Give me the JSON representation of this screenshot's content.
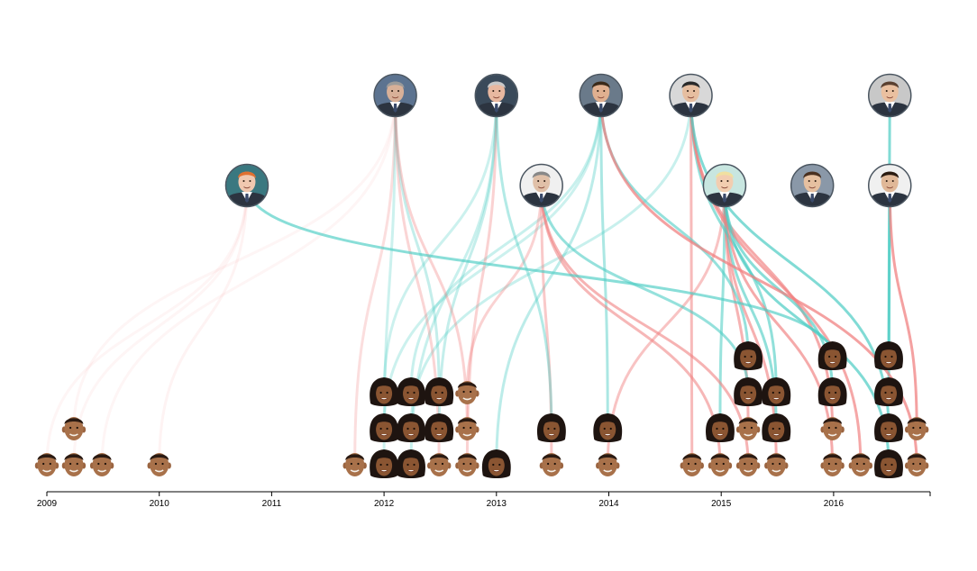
{
  "chart_data": {
    "type": "timeline-network",
    "xaxis": {
      "min": 2009.0,
      "max": 2016.85,
      "ticks": [
        "2009",
        "2010",
        "2011",
        "2012",
        "2013",
        "2014",
        "2015",
        "2016"
      ]
    },
    "colors": {
      "barack": "#f08080",
      "michelle": "#4ecdc4",
      "axis": "#000000"
    },
    "hosts": [
      {
        "id": "leno",
        "row": 0,
        "x": 2012.1,
        "skin": "#d8b098",
        "bg": "#5c7390",
        "hair": "#9a9a9a"
      },
      {
        "id": "letterman",
        "row": 0,
        "x": 2013.0,
        "skin": "#e8b8a0",
        "bg": "#3a4a5a",
        "hair": "#c8c8c8"
      },
      {
        "id": "fallon",
        "row": 0,
        "x": 2013.93,
        "skin": "#e0b090",
        "bg": "#6a7a8a",
        "hair": "#3a2a1a"
      },
      {
        "id": "colbert",
        "row": 0,
        "x": 2014.73,
        "skin": "#e6bea0",
        "bg": "#d8d8d8",
        "hair": "#2a2a2a"
      },
      {
        "id": "corden",
        "row": 0,
        "x": 2016.5,
        "skin": "#eac0a0",
        "bg": "#c8c8c8",
        "hair": "#5a4030"
      },
      {
        "id": "obrien",
        "row": 1,
        "x": 2010.78,
        "skin": "#f0c8b0",
        "bg": "#3a7880",
        "hair": "#e07030"
      },
      {
        "id": "stewart",
        "row": 1,
        "x": 2013.4,
        "skin": "#e0c0a8",
        "bg": "#f0f0f0",
        "hair": "#888888"
      },
      {
        "id": "degeneres",
        "row": 1,
        "x": 2015.03,
        "skin": "#f2cdb0",
        "bg": "#c8e6e0",
        "hair": "#f0e0a0"
      },
      {
        "id": "meyers",
        "row": 1,
        "x": 2015.81,
        "skin": "#e6c0a0",
        "bg": "#8a98a8",
        "hair": "#4a3020"
      },
      {
        "id": "kimmel",
        "row": 1,
        "x": 2016.5,
        "skin": "#e0b898",
        "bg": "#f0f0f0",
        "hair": "#2a1a10"
      }
    ],
    "appearances": [
      {
        "t": 2009.0,
        "s": 0,
        "guest": "barack",
        "host": "obrien"
      },
      {
        "t": 2009.24,
        "s": 0,
        "guest": "barack",
        "host": "obrien"
      },
      {
        "t": 2009.24,
        "s": 1,
        "guest": "barack",
        "host": "leno"
      },
      {
        "t": 2009.49,
        "s": 0,
        "guest": "barack",
        "host": "leno"
      },
      {
        "t": 2010.0,
        "s": 0,
        "guest": "barack",
        "host": "obrien"
      },
      {
        "t": 2011.74,
        "s": 0,
        "guest": "barack",
        "host": "leno"
      },
      {
        "t": 2012.0,
        "s": 0,
        "guest": "michelle",
        "host": "leno"
      },
      {
        "t": 2012.0,
        "s": 1,
        "guest": "michelle",
        "host": "fallon"
      },
      {
        "t": 2012.0,
        "s": 2,
        "guest": "michelle",
        "host": "letterman"
      },
      {
        "t": 2012.24,
        "s": 0,
        "guest": "michelle",
        "host": "letterman"
      },
      {
        "t": 2012.24,
        "s": 1,
        "guest": "michelle",
        "host": "colbert"
      },
      {
        "t": 2012.24,
        "s": 2,
        "guest": "michelle",
        "host": "fallon"
      },
      {
        "t": 2012.49,
        "s": 0,
        "guest": "barack",
        "host": "leno"
      },
      {
        "t": 2012.49,
        "s": 1,
        "guest": "michelle",
        "host": "letterman"
      },
      {
        "t": 2012.49,
        "s": 2,
        "guest": "michelle",
        "host": "leno"
      },
      {
        "t": 2012.74,
        "s": 0,
        "guest": "barack",
        "host": "letterman"
      },
      {
        "t": 2012.74,
        "s": 1,
        "guest": "barack",
        "host": "leno"
      },
      {
        "t": 2012.74,
        "s": 2,
        "guest": "barack",
        "host": "stewart"
      },
      {
        "t": 2013.0,
        "s": 0,
        "guest": "michelle",
        "host": "fallon"
      },
      {
        "t": 2013.49,
        "s": 0,
        "guest": "barack",
        "host": "stewart"
      },
      {
        "t": 2013.49,
        "s": 1,
        "guest": "michelle",
        "host": "letterman"
      },
      {
        "t": 2013.99,
        "s": 0,
        "guest": "barack",
        "host": "degeneres"
      },
      {
        "t": 2013.99,
        "s": 1,
        "guest": "michelle",
        "host": "fallon"
      },
      {
        "t": 2014.74,
        "s": 0,
        "guest": "barack",
        "host": "colbert"
      },
      {
        "t": 2014.99,
        "s": 0,
        "guest": "barack",
        "host": "stewart"
      },
      {
        "t": 2014.99,
        "s": 1,
        "guest": "michelle",
        "host": "degeneres"
      },
      {
        "t": 2015.24,
        "s": 0,
        "guest": "barack",
        "host": "stewart"
      },
      {
        "t": 2015.24,
        "s": 1,
        "guest": "barack",
        "host": "degeneres"
      },
      {
        "t": 2015.24,
        "s": 2,
        "guest": "michelle",
        "host": "stewart"
      },
      {
        "t": 2015.24,
        "s": 3,
        "guest": "michelle",
        "host": "fallon"
      },
      {
        "t": 2015.49,
        "s": 0,
        "guest": "barack",
        "host": "degeneres"
      },
      {
        "t": 2015.49,
        "s": 1,
        "guest": "michelle",
        "host": "degeneres"
      },
      {
        "t": 2015.49,
        "s": 2,
        "guest": "michelle",
        "host": "colbert"
      },
      {
        "t": 2015.99,
        "s": 0,
        "guest": "barack",
        "host": "degeneres"
      },
      {
        "t": 2015.99,
        "s": 1,
        "guest": "barack",
        "host": "colbert"
      },
      {
        "t": 2015.99,
        "s": 2,
        "guest": "michelle",
        "host": "degeneres"
      },
      {
        "t": 2015.99,
        "s": 3,
        "guest": "michelle",
        "host": "obrien"
      },
      {
        "t": 2016.24,
        "s": 0,
        "guest": "barack",
        "host": "colbert"
      },
      {
        "t": 2016.49,
        "s": 0,
        "guest": "michelle",
        "host": "degeneres"
      },
      {
        "t": 2016.49,
        "s": 1,
        "guest": "michelle",
        "host": "colbert"
      },
      {
        "t": 2016.49,
        "s": 2,
        "guest": "michelle",
        "host": "kimmel"
      },
      {
        "t": 2016.49,
        "s": 3,
        "guest": "michelle",
        "host": "corden"
      },
      {
        "t": 2016.74,
        "s": 0,
        "guest": "barack",
        "host": "fallon"
      },
      {
        "t": 2016.74,
        "s": 1,
        "guest": "barack",
        "host": "kimmel"
      }
    ]
  }
}
